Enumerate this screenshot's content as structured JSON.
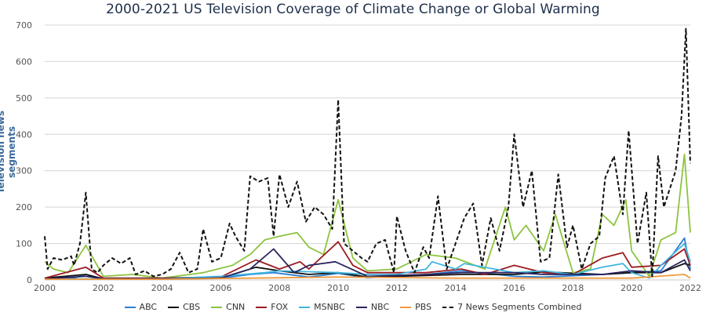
{
  "chart_data": {
    "type": "line",
    "title": "2000-2021 US Television Coverage of Climate Change or Global Warming",
    "xlabel": "",
    "ylabel": "Television news segments",
    "xlim": [
      2000,
      2022
    ],
    "ylim": [
      0,
      700
    ],
    "x_ticks": [
      "2000",
      "2002",
      "2004",
      "2006",
      "2008",
      "2010",
      "2012",
      "2014",
      "2016",
      "2018",
      "2020",
      "2022"
    ],
    "y_ticks": [
      "0",
      "100",
      "200",
      "300",
      "400",
      "500",
      "600",
      "700"
    ],
    "grid": true,
    "legend_position": "bottom",
    "series": [
      {
        "name": "ABC",
        "color": "#2a7fd4",
        "dash": false,
        "x": [
          2000,
          2001,
          2001.4,
          2002,
          2004,
          2006,
          2007,
          2007.8,
          2009,
          2010,
          2011,
          2013,
          2014.2,
          2016,
          2017,
          2019,
          2020,
          2021,
          2021.8,
          2022
        ],
        "y": [
          3,
          5,
          15,
          3,
          2,
          5,
          15,
          20,
          8,
          18,
          6,
          15,
          25,
          10,
          8,
          15,
          20,
          25,
          115,
          30
        ]
      },
      {
        "name": "CBS",
        "color": "#111111",
        "dash": false,
        "x": [
          2000,
          2001.4,
          2002,
          2004,
          2006,
          2007.2,
          2008,
          2009,
          2010,
          2011,
          2013,
          2014.2,
          2016,
          2017,
          2019,
          2020,
          2021,
          2021.8,
          2022
        ],
        "y": [
          5,
          15,
          3,
          3,
          5,
          35,
          25,
          15,
          20,
          8,
          12,
          15,
          15,
          22,
          15,
          20,
          20,
          45,
          40
        ]
      },
      {
        "name": "CNN",
        "color": "#8dc43f",
        "dash": false,
        "x": [
          2000,
          2000.3,
          2000.8,
          2001.4,
          2002,
          2003,
          2004,
          2005.4,
          2006.4,
          2007,
          2007.5,
          2008,
          2008.6,
          2009,
          2009.5,
          2010,
          2010.5,
          2011,
          2012,
          2013,
          2014,
          2015,
          2015.7,
          2016,
          2016.4,
          2017,
          2017.4,
          2018,
          2018.6,
          2019,
          2019.4,
          2019.8,
          2020,
          2020.6,
          2021,
          2021.5,
          2021.8,
          2022
        ],
        "y": [
          50,
          30,
          20,
          95,
          10,
          15,
          5,
          20,
          40,
          70,
          110,
          120,
          130,
          90,
          70,
          220,
          60,
          25,
          30,
          70,
          60,
          30,
          200,
          110,
          150,
          80,
          180,
          20,
          30,
          180,
          150,
          220,
          80,
          10,
          110,
          130,
          345,
          130
        ]
      },
      {
        "name": "FOX",
        "color": "#9b1c22",
        "dash": false,
        "x": [
          2000,
          2001.4,
          2002,
          2004,
          2006,
          2007.2,
          2008,
          2008.7,
          2009,
          2010,
          2010.5,
          2011,
          2013,
          2014.2,
          2015,
          2016,
          2017,
          2018,
          2019,
          2019.7,
          2020,
          2021,
          2021.8,
          2022
        ],
        "y": [
          5,
          35,
          5,
          5,
          8,
          55,
          30,
          50,
          30,
          105,
          40,
          20,
          20,
          30,
          15,
          40,
          20,
          15,
          60,
          75,
          35,
          40,
          85,
          40
        ]
      },
      {
        "name": "MSNBC",
        "color": "#3fb6e0",
        "dash": false,
        "x": [
          2000,
          2002,
          2004,
          2006,
          2007.5,
          2008,
          2010,
          2011,
          2012,
          2013,
          2013.2,
          2014,
          2014.3,
          2016,
          2017,
          2018,
          2019,
          2019.7,
          2020,
          2020.6,
          2021,
          2021.8,
          2022
        ],
        "y": [
          2,
          3,
          3,
          10,
          20,
          25,
          20,
          15,
          15,
          30,
          50,
          30,
          45,
          20,
          25,
          15,
          35,
          45,
          20,
          5,
          40,
          100,
          50
        ]
      },
      {
        "name": "NBC",
        "color": "#2a2560",
        "dash": false,
        "x": [
          2000,
          2001.4,
          2002,
          2004,
          2006,
          2007,
          2007.8,
          2008.5,
          2009,
          2009.9,
          2011,
          2013,
          2014.2,
          2016,
          2017,
          2019,
          2020,
          2021,
          2021.8,
          2022
        ],
        "y": [
          3,
          10,
          3,
          3,
          5,
          30,
          85,
          20,
          40,
          50,
          10,
          15,
          20,
          20,
          15,
          15,
          25,
          20,
          55,
          25
        ]
      },
      {
        "name": "PBS",
        "color": "#f09a3e",
        "dash": false,
        "x": [
          2000,
          2004,
          2007,
          2010,
          2014,
          2018,
          2020,
          2021.8,
          2022
        ],
        "y": [
          2,
          2,
          5,
          8,
          5,
          5,
          5,
          15,
          5
        ]
      },
      {
        "name": "7 News Segments Combined",
        "color": "#111111",
        "dash": true,
        "x": [
          2000,
          2000.1,
          2000.3,
          2000.6,
          2000.9,
          2001,
          2001.2,
          2001.4,
          2001.6,
          2001.8,
          2002,
          2002.3,
          2002.6,
          2002.9,
          2003.1,
          2003.4,
          2003.7,
          2004,
          2004.3,
          2004.6,
          2004.9,
          2005.2,
          2005.4,
          2005.7,
          2006,
          2006.3,
          2006.5,
          2006.8,
          2007,
          2007.3,
          2007.6,
          2007.8,
          2008,
          2008.3,
          2008.6,
          2008.9,
          2009.2,
          2009.5,
          2009.8,
          2010,
          2010.2,
          2010.5,
          2010.8,
          2011,
          2011.3,
          2011.6,
          2011.9,
          2012,
          2012.3,
          2012.6,
          2012.9,
          2013.1,
          2013.4,
          2013.7,
          2014,
          2014.3,
          2014.6,
          2014.9,
          2015.2,
          2015.5,
          2015.8,
          2016,
          2016.3,
          2016.6,
          2016.9,
          2017.2,
          2017.5,
          2017.8,
          2018,
          2018.3,
          2018.6,
          2018.9,
          2019.1,
          2019.4,
          2019.7,
          2019.9,
          2020.2,
          2020.5,
          2020.7,
          2020.9,
          2021.1,
          2021.3,
          2021.5,
          2021.7,
          2021.85,
          2022
        ],
        "y": [
          120,
          30,
          60,
          55,
          65,
          40,
          100,
          240,
          30,
          20,
          40,
          60,
          45,
          60,
          15,
          25,
          10,
          15,
          30,
          75,
          20,
          30,
          140,
          50,
          60,
          155,
          120,
          80,
          285,
          270,
          280,
          120,
          290,
          200,
          270,
          160,
          200,
          180,
          140,
          495,
          100,
          80,
          60,
          50,
          100,
          110,
          20,
          175,
          80,
          20,
          90,
          60,
          230,
          30,
          100,
          170,
          210,
          40,
          170,
          80,
          200,
          400,
          200,
          300,
          50,
          60,
          290,
          90,
          150,
          30,
          100,
          120,
          280,
          340,
          180,
          410,
          100,
          240,
          10,
          340,
          200,
          250,
          300,
          450,
          690,
          320
        ]
      }
    ]
  }
}
